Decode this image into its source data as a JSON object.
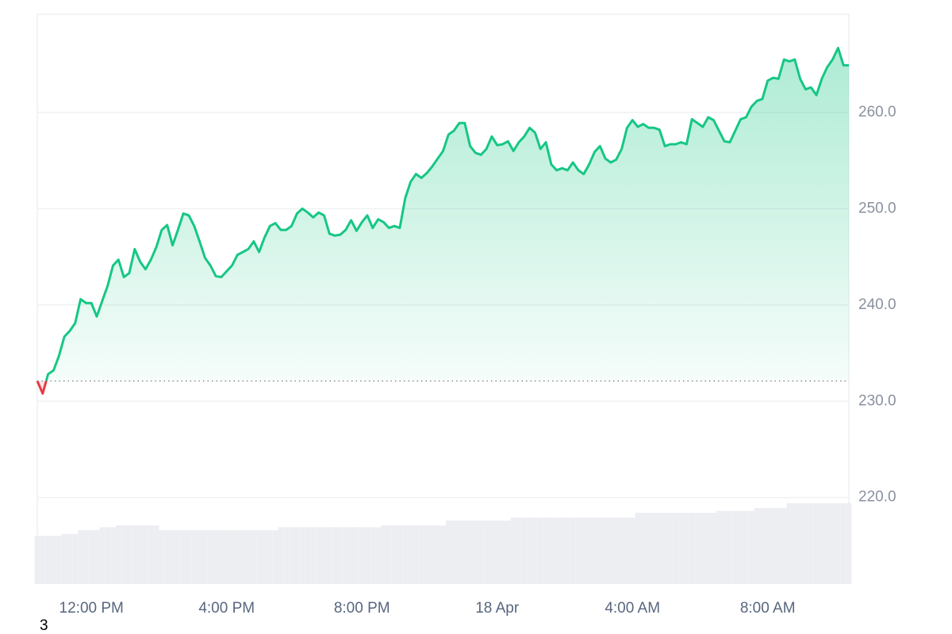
{
  "chart_data": {
    "type": "line",
    "categories": [
      null,
      null,
      null,
      null,
      null,
      null,
      null,
      null,
      null,
      null,
      "12:00 PM",
      null,
      null,
      null,
      null,
      null,
      null,
      null,
      null,
      null,
      null,
      null,
      null,
      null,
      null,
      null,
      null,
      null,
      null,
      null,
      null,
      null,
      null,
      null,
      null,
      "4:00 PM",
      null,
      null,
      null,
      null,
      null,
      null,
      null,
      null,
      null,
      null,
      null,
      null,
      null,
      null,
      null,
      null,
      null,
      null,
      null,
      null,
      null,
      null,
      null,
      null,
      "8:00 PM",
      null,
      null,
      null,
      null,
      null,
      null,
      null,
      null,
      null,
      null,
      null,
      null,
      null,
      null,
      null,
      null,
      null,
      null,
      null,
      null,
      null,
      null,
      null,
      null,
      "18 Apr",
      null,
      null,
      null,
      null,
      null,
      null,
      null,
      null,
      null,
      null,
      null,
      null,
      null,
      null,
      null,
      null,
      null,
      null,
      null,
      null,
      null,
      null,
      null,
      null,
      "4:00 AM",
      null,
      null,
      null,
      null,
      null,
      null,
      null,
      null,
      null,
      null,
      null,
      null,
      null,
      null,
      null,
      null,
      null,
      null,
      null,
      null,
      null,
      null,
      null,
      null,
      "8:00 AM",
      null,
      null,
      null,
      null,
      null,
      null,
      null,
      null,
      null,
      null,
      null,
      null,
      null,
      null,
      null
    ],
    "series": [
      {
        "type": "line",
        "color": "#16c784",
        "down_color": "#ea3943",
        "values": [
          232.1,
          230.8,
          232.8,
          233.2,
          234.7,
          236.7,
          237.3,
          238.1,
          240.6,
          240.2,
          240.2,
          238.8,
          240.4,
          242.0,
          244.1,
          244.7,
          242.9,
          243.3,
          245.8,
          244.5,
          243.7,
          244.7,
          246.0,
          247.8,
          248.3,
          246.2,
          247.8,
          249.5,
          249.3,
          248.2,
          246.6,
          244.9,
          244.1,
          243.0,
          242.9,
          243.5,
          244.1,
          245.2,
          245.5,
          245.8,
          246.6,
          245.5,
          247.0,
          248.2,
          248.5,
          247.8,
          247.8,
          248.2,
          249.5,
          250.0,
          249.6,
          249.1,
          249.6,
          249.3,
          247.4,
          247.2,
          247.3,
          247.8,
          248.8,
          247.7,
          248.6,
          249.3,
          248.0,
          248.9,
          248.6,
          248.0,
          248.2,
          248.0,
          251.1,
          252.8,
          253.6,
          253.2,
          253.7,
          254.4,
          255.2,
          256.0,
          257.7,
          258.1,
          258.9,
          258.9,
          256.5,
          255.8,
          255.6,
          256.2,
          257.5,
          256.6,
          256.7,
          257.0,
          256.0,
          256.9,
          257.5,
          258.4,
          257.9,
          256.2,
          256.9,
          254.6,
          254.0,
          254.2,
          254.0,
          254.8,
          254.0,
          253.6,
          254.6,
          255.9,
          256.5,
          255.2,
          254.8,
          255.1,
          256.2,
          258.4,
          259.2,
          258.5,
          258.8,
          258.4,
          258.4,
          258.2,
          256.5,
          256.7,
          256.7,
          256.9,
          256.7,
          259.3,
          258.9,
          258.5,
          259.5,
          259.2,
          258.1,
          257.0,
          256.9,
          258.1,
          259.3,
          259.5,
          260.6,
          261.2,
          261.4,
          263.3,
          263.6,
          263.5,
          265.5,
          265.3,
          265.5,
          263.5,
          262.4,
          262.6,
          261.8,
          263.5,
          264.7,
          265.5,
          266.7,
          264.9,
          264.9
        ]
      },
      {
        "type": "bar",
        "color": "#eceef2",
        "values": [
          216.0,
          216.0,
          216.0,
          216.0,
          216.0,
          216.2,
          216.2,
          216.2,
          216.6,
          216.6,
          216.6,
          216.6,
          216.9,
          216.9,
          216.9,
          217.1,
          217.1,
          217.1,
          217.1,
          217.1,
          217.1,
          217.1,
          217.1,
          216.6,
          216.6,
          216.6,
          216.6,
          216.6,
          216.6,
          216.6,
          216.6,
          216.6,
          216.6,
          216.6,
          216.6,
          216.6,
          216.6,
          216.6,
          216.6,
          216.6,
          216.6,
          216.6,
          216.6,
          216.6,
          216.6,
          216.9,
          216.9,
          216.9,
          216.9,
          216.9,
          216.9,
          216.9,
          216.9,
          216.9,
          216.9,
          216.9,
          216.9,
          216.9,
          216.9,
          216.9,
          216.9,
          216.9,
          216.9,
          216.9,
          217.1,
          217.1,
          217.1,
          217.1,
          217.1,
          217.1,
          217.1,
          217.1,
          217.1,
          217.1,
          217.1,
          217.1,
          217.6,
          217.6,
          217.6,
          217.6,
          217.6,
          217.6,
          217.6,
          217.6,
          217.6,
          217.6,
          217.6,
          217.6,
          217.9,
          217.9,
          217.9,
          217.9,
          217.9,
          217.9,
          217.9,
          217.9,
          217.9,
          217.9,
          217.9,
          217.9,
          217.9,
          217.9,
          217.9,
          217.9,
          217.9,
          217.9,
          217.9,
          217.9,
          217.9,
          217.9,
          217.9,
          218.4,
          218.4,
          218.4,
          218.4,
          218.4,
          218.4,
          218.4,
          218.4,
          218.4,
          218.4,
          218.4,
          218.4,
          218.4,
          218.4,
          218.4,
          218.6,
          218.6,
          218.6,
          218.6,
          218.6,
          218.6,
          218.6,
          218.9,
          218.9,
          218.9,
          218.9,
          218.9,
          218.9,
          219.4,
          219.4,
          219.4,
          219.4,
          219.4,
          219.4,
          219.4,
          219.4,
          219.4,
          219.4,
          219.4,
          219.4
        ]
      }
    ],
    "baseline": 232.1,
    "ylim": [
      211,
      270.2
    ],
    "yticks": [
      {
        "value": 220,
        "label": "220.0"
      },
      {
        "value": 230,
        "label": "230.0"
      },
      {
        "value": 240,
        "label": "240.0"
      },
      {
        "value": 250,
        "label": "250.0"
      },
      {
        "value": 260,
        "label": "260.0"
      }
    ],
    "grid": true,
    "footer_text": "3"
  }
}
